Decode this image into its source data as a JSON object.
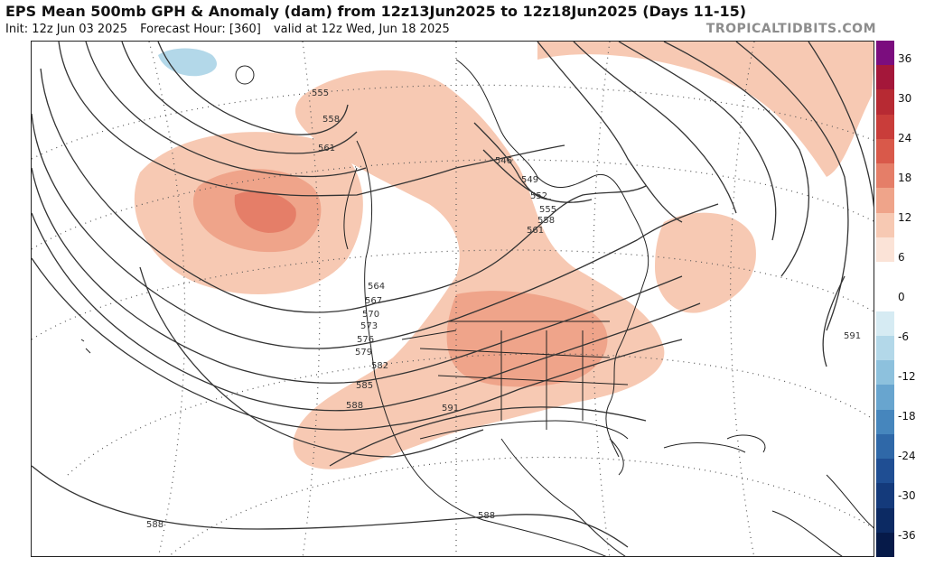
{
  "header": {
    "title": "EPS Mean 500mb GPH & Anomaly (dam) from 12z13Jun2025 to 12z18Jun2025 (Days 11-15)",
    "init": "Init: 12z Jun 03 2025",
    "forecast_hour": "Forecast Hour: [360]",
    "valid": "valid at 12z Wed, Jun 18 2025",
    "brand": "TROPICALTIDBITS.COM"
  },
  "colorbar": {
    "labels": [
      "36",
      "30",
      "24",
      "18",
      "12",
      "6",
      "0",
      "-6",
      "-12",
      "-18",
      "-24",
      "-30",
      "-36"
    ],
    "colors_top_to_bottom": [
      "#7b0d7e",
      "#a4173a",
      "#b72a33",
      "#c93d3a",
      "#d9594a",
      "#e57e68",
      "#efa48a",
      "#f7c9b3",
      "#fbe3d7",
      "#ffffff",
      "#ffffff",
      "#d6ebf3",
      "#b3d8e9",
      "#8dc1dd",
      "#68a5cf",
      "#4686bd",
      "#2f68a8",
      "#1f4e93",
      "#143a7b",
      "#0c2a63",
      "#061a49"
    ]
  },
  "contour_labels": [
    "546",
    "549",
    "552",
    "555",
    "558",
    "561",
    "555",
    "558",
    "561",
    "564",
    "567",
    "570",
    "573",
    "576",
    "579",
    "582",
    "585",
    "588",
    "591",
    "591",
    "588",
    "588"
  ]
}
